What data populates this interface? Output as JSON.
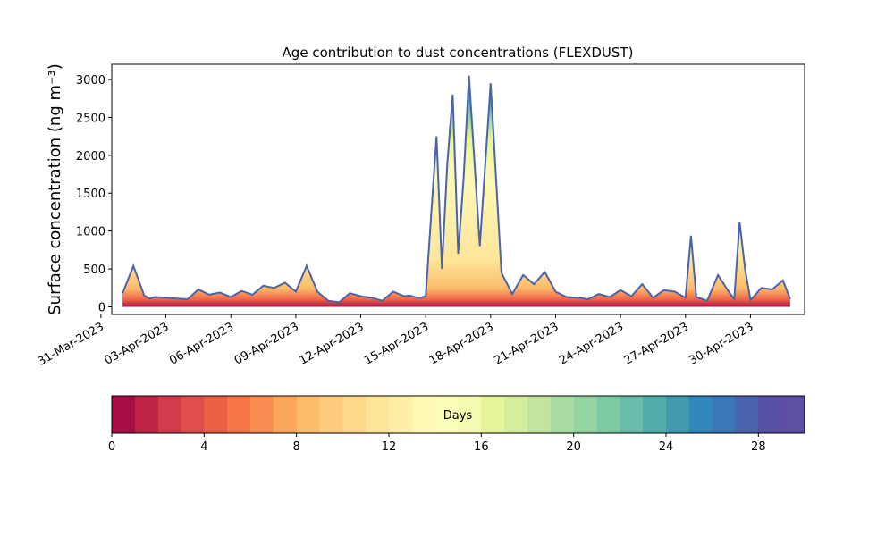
{
  "chart_data": {
    "type": "area",
    "title": "Age contribution to dust concentrations (FLEXDUST)",
    "ylabel": "Surface concentration (ng m⁻³)",
    "xlabel": "",
    "ylim": [
      -100,
      3200
    ],
    "xlim": [
      "2023-03-31T12:00",
      "2023-05-02T12:00"
    ],
    "yticks": [
      0,
      500,
      1000,
      1500,
      2000,
      2500,
      3000
    ],
    "xticks": [
      "31-Mar-2023",
      "03-Apr-2023",
      "06-Apr-2023",
      "09-Apr-2023",
      "12-Apr-2023",
      "15-Apr-2023",
      "18-Apr-2023",
      "21-Apr-2023",
      "24-Apr-2023",
      "27-Apr-2023",
      "30-Apr-2023"
    ],
    "total_series": {
      "name": "",
      "x": [
        "2023-04-01T00:00",
        "2023-04-01T12:00",
        "2023-04-02T00:00",
        "2023-04-02T06:00",
        "2023-04-02T12:00",
        "2023-04-03T00:00",
        "2023-04-03T12:00",
        "2023-04-04T00:00",
        "2023-04-04T12:00",
        "2023-04-05T00:00",
        "2023-04-05T12:00",
        "2023-04-06T00:00",
        "2023-04-06T12:00",
        "2023-04-07T00:00",
        "2023-04-07T12:00",
        "2023-04-08T00:00",
        "2023-04-08T12:00",
        "2023-04-09T00:00",
        "2023-04-09T12:00",
        "2023-04-10T00:00",
        "2023-04-10T12:00",
        "2023-04-11T00:00",
        "2023-04-11T12:00",
        "2023-04-12T00:00",
        "2023-04-12T12:00",
        "2023-04-13T00:00",
        "2023-04-13T12:00",
        "2023-04-14T00:00",
        "2023-04-14T06:00",
        "2023-04-14T12:00",
        "2023-04-14T18:00",
        "2023-04-15T00:00",
        "2023-04-15T06:00",
        "2023-04-15T12:00",
        "2023-04-15T18:00",
        "2023-04-16T00:00",
        "2023-04-16T06:00",
        "2023-04-16T12:00",
        "2023-04-16T18:00",
        "2023-04-17T00:00",
        "2023-04-17T12:00",
        "2023-04-18T00:00",
        "2023-04-18T12:00",
        "2023-04-19T00:00",
        "2023-04-19T12:00",
        "2023-04-20T00:00",
        "2023-04-20T12:00",
        "2023-04-21T00:00",
        "2023-04-21T12:00",
        "2023-04-22T00:00",
        "2023-04-22T12:00",
        "2023-04-23T00:00",
        "2023-04-23T12:00",
        "2023-04-24T00:00",
        "2023-04-24T12:00",
        "2023-04-25T00:00",
        "2023-04-25T12:00",
        "2023-04-26T00:00",
        "2023-04-26T12:00",
        "2023-04-27T00:00",
        "2023-04-27T06:00",
        "2023-04-27T12:00",
        "2023-04-28T00:00",
        "2023-04-28T12:00",
        "2023-04-29T00:00",
        "2023-04-29T06:00",
        "2023-04-29T12:00",
        "2023-04-29T18:00",
        "2023-04-30T00:00",
        "2023-04-30T12:00",
        "2023-05-01T00:00",
        "2023-05-01T12:00",
        "2023-05-01T20:00"
      ],
      "y": [
        180,
        540,
        150,
        110,
        130,
        120,
        110,
        100,
        230,
        160,
        190,
        130,
        210,
        160,
        280,
        250,
        320,
        200,
        540,
        200,
        80,
        60,
        180,
        140,
        120,
        80,
        200,
        140,
        150,
        130,
        120,
        140,
        1200,
        2250,
        500,
        1900,
        2800,
        700,
        1700,
        3050,
        800,
        2950,
        450,
        170,
        420,
        300,
        460,
        200,
        130,
        120,
        100,
        170,
        130,
        220,
        140,
        300,
        120,
        220,
        200,
        120,
        940,
        130,
        80,
        420,
        200,
        100,
        1120,
        500,
        90,
        250,
        230,
        350,
        100
      ]
    },
    "colorbar": {
      "label": "Days",
      "min": 0,
      "max": 30,
      "ticks": [
        0,
        4,
        8,
        12,
        16,
        20,
        24,
        28
      ],
      "colormap": "Spectral",
      "colors": [
        "#a50f45",
        "#be2245",
        "#d13b4b",
        "#e04e4d",
        "#ec6146",
        "#f57748",
        "#f98e52",
        "#fca55d",
        "#fdbb6c",
        "#fdcb7b",
        "#fed98b",
        "#fee59a",
        "#ffefa4",
        "#fff9b6",
        "#fbfdb9",
        "#f4faae",
        "#e7f59a",
        "#d6ee9b",
        "#c1e59e",
        "#aadca4",
        "#96d4a4",
        "#7ccba5",
        "#69bda9",
        "#52aeaa",
        "#419aae",
        "#3288bd",
        "#3a77b8",
        "#4a63ac",
        "#5850a3",
        "#5e4fa2"
      ]
    }
  }
}
